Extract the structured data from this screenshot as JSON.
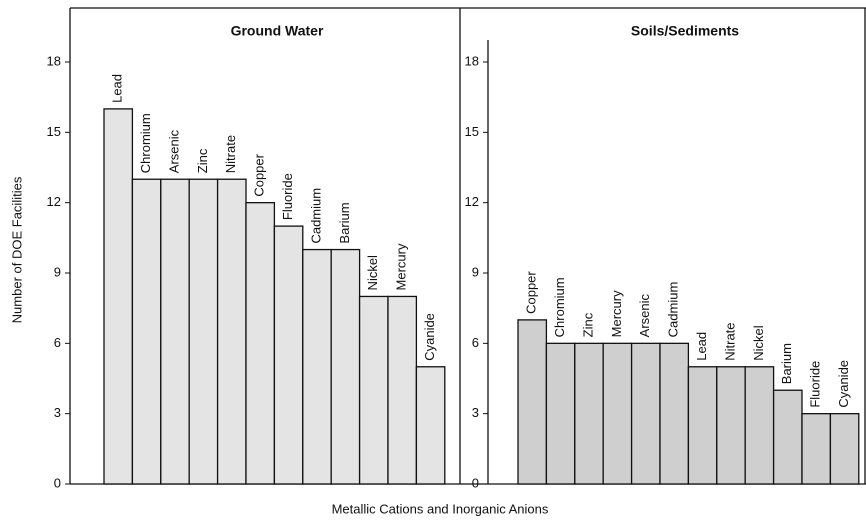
{
  "axis_labels": {
    "x": "Metallic Cations and Inorganic Anions",
    "y": "Number of DOE Facilities"
  },
  "chart_data": [
    {
      "type": "bar",
      "title": "Ground Water",
      "categories": [
        "Lead",
        "Chromium",
        "Arsenic",
        "Zinc",
        "Nitrate",
        "Copper",
        "Fluoride",
        "Cadmium",
        "Barium",
        "Nickel",
        "Mercury",
        "Cyanide"
      ],
      "values": [
        16,
        13,
        13,
        13,
        13,
        12,
        11,
        10,
        10,
        8,
        8,
        5
      ],
      "color": "#e4e4e4",
      "ylim": [
        0,
        18
      ],
      "yticks": [
        0,
        3,
        6,
        9,
        12,
        15,
        18
      ]
    },
    {
      "type": "bar",
      "title": "Soils/Sediments",
      "categories": [
        "Copper",
        "Chromium",
        "Zinc",
        "Mercury",
        "Arsenic",
        "Cadmium",
        "Lead",
        "Nitrate",
        "Nickel",
        "Barium",
        "Fluoride",
        "Cyanide"
      ],
      "values": [
        7,
        6,
        6,
        6,
        6,
        6,
        5,
        5,
        5,
        4,
        3,
        3
      ],
      "color": "#cfcfcf",
      "ylim": [
        0,
        18
      ],
      "yticks": [
        0,
        3,
        6,
        9,
        12,
        15,
        18
      ]
    }
  ]
}
